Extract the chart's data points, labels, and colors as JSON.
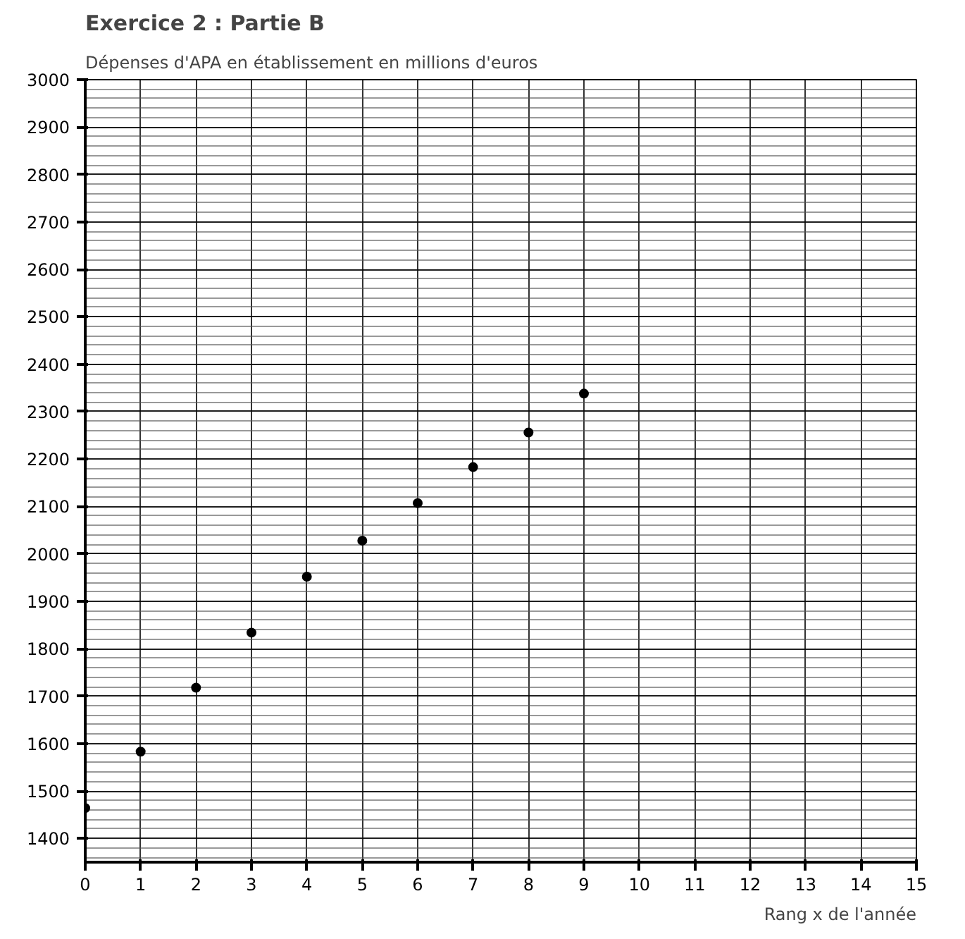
{
  "chart_data": {
    "type": "scatter",
    "title": "Exercice 2 : Partie B",
    "ylabel": "Dépenses d'APA en établissement en millions d'euros",
    "xlabel": "Rang x de l'année",
    "x": [
      0,
      1,
      2,
      3,
      4,
      5,
      6,
      7,
      8,
      9
    ],
    "values": [
      1464,
      1583,
      1718,
      1834,
      1952,
      2028,
      2107,
      2183,
      2256,
      2338
    ],
    "color": "#000000",
    "marker": "circle",
    "xlim": [
      0,
      15
    ],
    "ylim": [
      1350,
      3000
    ],
    "xticks": [
      0,
      1,
      2,
      3,
      4,
      5,
      6,
      7,
      8,
      9,
      10,
      11,
      12,
      13,
      14,
      15
    ],
    "yticks": [
      1400,
      1500,
      1600,
      1700,
      1800,
      1900,
      2000,
      2100,
      2200,
      2300,
      2400,
      2500,
      2600,
      2700,
      2800,
      2900,
      3000
    ],
    "grid": true
  }
}
